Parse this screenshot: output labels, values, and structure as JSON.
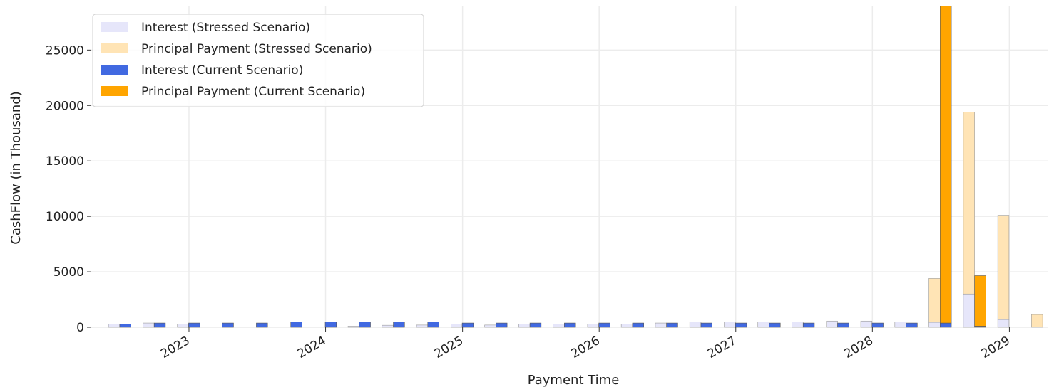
{
  "chart_data": {
    "type": "bar",
    "title": "",
    "xlabel": "Payment Time",
    "ylabel": "CashFlow (in Thousand)",
    "ylim": [
      0,
      29000
    ],
    "yticks": [
      0,
      5000,
      10000,
      15000,
      20000,
      25000
    ],
    "ytick_labels": [
      "0",
      "5000",
      "10000",
      "15000",
      "20000",
      "25000"
    ],
    "xticks": [
      "2023-01-01",
      "2024-01-01",
      "2025-01-01",
      "2026-01-01",
      "2027-01-01",
      "2028-01-01",
      "2029-01-01"
    ],
    "xtick_labels": [
      "2023",
      "2024",
      "2025",
      "2026",
      "2027",
      "2028",
      "2029"
    ],
    "xlim": [
      "2022-04-15",
      "2029-04-15"
    ],
    "grid": true,
    "legend_position": "top-left",
    "legend": [
      {
        "label": "Interest (Stressed Scenario)",
        "color": "#e6e6fa"
      },
      {
        "label": "Principal Payment (Stressed Scenario)",
        "color": "#ffe4b5"
      },
      {
        "label": "Interest (Current Scenario)",
        "color": "#4169e1"
      },
      {
        "label": "Principal Payment (Current Scenario)",
        "color": "#ffa500"
      }
    ],
    "stressed": {
      "dates": [
        "2022-06-30",
        "2022-09-30",
        "2022-12-31",
        "2023-03-31",
        "2023-06-30",
        "2023-09-30",
        "2023-12-31",
        "2024-03-31",
        "2024-06-30",
        "2024-09-30",
        "2024-12-31",
        "2025-03-31",
        "2025-06-30",
        "2025-09-30",
        "2025-12-31",
        "2026-03-31",
        "2026-06-30",
        "2026-09-30",
        "2026-12-31",
        "2027-03-31",
        "2027-06-30",
        "2027-09-30",
        "2027-12-31",
        "2028-03-31",
        "2028-06-30",
        "2028-09-30",
        "2028-12-31",
        "2029-03-31"
      ],
      "interest": [
        300,
        380,
        300,
        0,
        0,
        0,
        0,
        100,
        180,
        200,
        300,
        200,
        300,
        300,
        300,
        300,
        380,
        480,
        480,
        480,
        480,
        560,
        560,
        480,
        450,
        3000,
        700,
        0
      ],
      "principal": [
        0,
        0,
        0,
        0,
        0,
        0,
        0,
        0,
        0,
        0,
        0,
        0,
        0,
        0,
        0,
        0,
        0,
        0,
        0,
        0,
        0,
        0,
        0,
        0,
        3950,
        16400,
        9400,
        1150
      ]
    },
    "current": {
      "dates": [
        "2022-06-30",
        "2022-09-30",
        "2022-12-31",
        "2023-03-31",
        "2023-06-30",
        "2023-09-30",
        "2023-12-31",
        "2024-03-31",
        "2024-06-30",
        "2024-09-30",
        "2024-12-31",
        "2025-03-31",
        "2025-06-30",
        "2025-09-30",
        "2025-12-31",
        "2026-03-31",
        "2026-06-30",
        "2026-09-30",
        "2026-12-31",
        "2027-03-31",
        "2027-06-30",
        "2027-09-30",
        "2027-12-31",
        "2028-03-31",
        "2028-06-30",
        "2028-09-30"
      ],
      "interest": [
        300,
        380,
        380,
        380,
        380,
        480,
        480,
        480,
        480,
        480,
        380,
        380,
        380,
        380,
        380,
        380,
        380,
        380,
        380,
        380,
        380,
        380,
        380,
        380,
        380,
        100
      ],
      "principal": [
        0,
        0,
        0,
        0,
        0,
        0,
        0,
        0,
        0,
        0,
        0,
        0,
        0,
        0,
        0,
        0,
        0,
        0,
        0,
        0,
        0,
        0,
        0,
        0,
        28600,
        4550
      ]
    }
  }
}
